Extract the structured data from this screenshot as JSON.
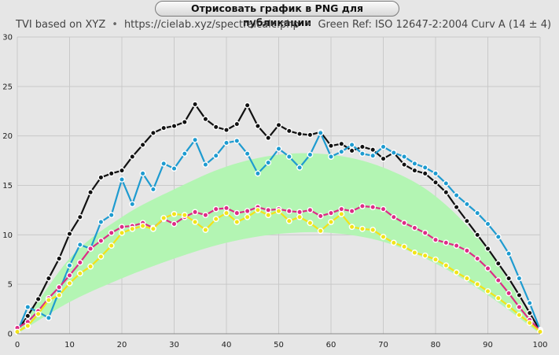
{
  "header": {
    "export_button_label": "Отрисовать график в PNG для публикации",
    "subtitle_parts": [
      "TVI based on XYZ",
      "https://cielab.xyz/spectralcalc.php",
      "Green Ref: ISO 12647-2:2004 Curv A (14 ± 4)"
    ],
    "separator": "•"
  },
  "chart_data": {
    "type": "line",
    "title": "",
    "xlabel": "",
    "ylabel": "",
    "xlim": [
      0,
      100
    ],
    "ylim": [
      0,
      30
    ],
    "x_ticks": [
      0,
      10,
      20,
      30,
      40,
      50,
      60,
      70,
      80,
      90,
      100
    ],
    "y_ticks": [
      0,
      5,
      10,
      15,
      20,
      25,
      30
    ],
    "grid": true,
    "reference_band": {
      "color": "#b3f5b3",
      "x": [
        0,
        10,
        20,
        30,
        40,
        50,
        60,
        70,
        80,
        90,
        100
      ],
      "lower": [
        0,
        3.2,
        5.6,
        7.6,
        9.2,
        10.1,
        10.2,
        9.3,
        7.1,
        3.9,
        0
      ],
      "upper": [
        0,
        7.6,
        11.8,
        14.6,
        16.9,
        18.1,
        18.1,
        16.8,
        13.9,
        8.4,
        0
      ]
    },
    "series": [
      {
        "color": "#111111",
        "x": [
          0,
          2,
          4,
          6,
          8,
          10,
          12,
          14,
          16,
          18,
          20,
          22,
          24,
          26,
          28,
          30,
          32,
          34,
          36,
          38,
          40,
          42,
          44,
          46,
          48,
          50,
          52,
          54,
          56,
          58,
          60,
          62,
          64,
          66,
          68,
          70,
          72,
          74,
          76,
          78,
          80,
          82,
          84,
          86,
          88,
          90,
          92,
          94,
          96,
          98,
          100
        ],
        "y": [
          0.3,
          1.8,
          3.5,
          5.6,
          7.6,
          10.1,
          11.8,
          14.3,
          15.8,
          16.2,
          16.5,
          17.9,
          19.1,
          20.3,
          20.8,
          21.0,
          21.4,
          23.2,
          21.7,
          20.9,
          20.6,
          21.2,
          23.1,
          21.0,
          19.8,
          21.1,
          20.5,
          20.2,
          20.1,
          20.4,
          19.0,
          19.2,
          18.5,
          18.9,
          18.6,
          17.7,
          18.3,
          17.1,
          16.5,
          16.2,
          15.3,
          14.3,
          12.8,
          11.4,
          10.0,
          8.6,
          7.1,
          5.6,
          3.9,
          2.1,
          0.3
        ]
      },
      {
        "color": "#1e9bd0",
        "x": [
          0,
          2,
          4,
          6,
          8,
          10,
          12,
          14,
          16,
          18,
          20,
          22,
          24,
          26,
          28,
          30,
          32,
          34,
          36,
          38,
          40,
          42,
          44,
          46,
          48,
          50,
          52,
          54,
          56,
          58,
          60,
          62,
          64,
          66,
          68,
          70,
          72,
          74,
          76,
          78,
          80,
          82,
          84,
          86,
          88,
          90,
          92,
          94,
          96,
          98,
          100
        ],
        "y": [
          0.2,
          2.7,
          2.2,
          1.6,
          4.3,
          6.9,
          9.0,
          8.6,
          11.3,
          12.0,
          15.6,
          13.1,
          16.2,
          14.6,
          17.2,
          16.7,
          18.2,
          19.6,
          17.1,
          18.0,
          19.3,
          19.5,
          18.2,
          16.2,
          17.3,
          18.7,
          17.9,
          16.8,
          18.1,
          20.3,
          17.9,
          18.4,
          19.1,
          18.2,
          18.0,
          18.9,
          18.3,
          17.9,
          17.2,
          16.8,
          16.2,
          15.2,
          14.0,
          13.1,
          12.2,
          11.1,
          9.8,
          8.1,
          5.6,
          3.1,
          0.4
        ]
      },
      {
        "color": "#dd2c86",
        "x": [
          0,
          2,
          4,
          6,
          8,
          10,
          12,
          14,
          16,
          18,
          20,
          22,
          24,
          26,
          28,
          30,
          32,
          34,
          36,
          38,
          40,
          42,
          44,
          46,
          48,
          50,
          52,
          54,
          56,
          58,
          60,
          62,
          64,
          66,
          68,
          70,
          72,
          74,
          76,
          78,
          80,
          82,
          84,
          86,
          88,
          90,
          92,
          94,
          96,
          98,
          100
        ],
        "y": [
          0.6,
          1.2,
          2.3,
          3.6,
          4.7,
          5.9,
          7.2,
          8.6,
          9.4,
          10.2,
          10.8,
          10.9,
          11.2,
          10.7,
          11.6,
          11.1,
          11.8,
          12.3,
          12.0,
          12.6,
          12.7,
          12.2,
          12.4,
          12.8,
          12.5,
          12.6,
          12.4,
          12.3,
          12.5,
          11.9,
          12.2,
          12.6,
          12.4,
          12.9,
          12.8,
          12.6,
          11.8,
          11.2,
          10.7,
          10.2,
          9.5,
          9.2,
          8.9,
          8.4,
          7.6,
          6.6,
          5.4,
          4.1,
          2.7,
          1.4,
          0.3
        ]
      },
      {
        "color": "#f2e41a",
        "x": [
          0,
          2,
          4,
          6,
          8,
          10,
          12,
          14,
          16,
          18,
          20,
          22,
          24,
          26,
          28,
          30,
          32,
          34,
          36,
          38,
          40,
          42,
          44,
          46,
          48,
          50,
          52,
          54,
          56,
          58,
          60,
          62,
          64,
          66,
          68,
          70,
          72,
          74,
          76,
          78,
          80,
          82,
          84,
          86,
          88,
          90,
          92,
          94,
          96,
          98,
          100
        ],
        "y": [
          0.2,
          0.8,
          2.0,
          3.4,
          3.9,
          5.1,
          6.1,
          6.8,
          7.8,
          8.9,
          10.2,
          10.6,
          10.9,
          10.6,
          11.7,
          12.1,
          12.0,
          11.3,
          10.5,
          11.6,
          12.2,
          11.3,
          11.8,
          12.5,
          12.0,
          12.4,
          11.4,
          11.8,
          11.2,
          10.4,
          11.3,
          12.1,
          10.8,
          10.6,
          10.5,
          9.8,
          9.2,
          8.8,
          8.2,
          7.9,
          7.5,
          6.9,
          6.2,
          5.6,
          5.0,
          4.3,
          3.6,
          2.8,
          1.9,
          1.1,
          0.2
        ]
      }
    ]
  }
}
